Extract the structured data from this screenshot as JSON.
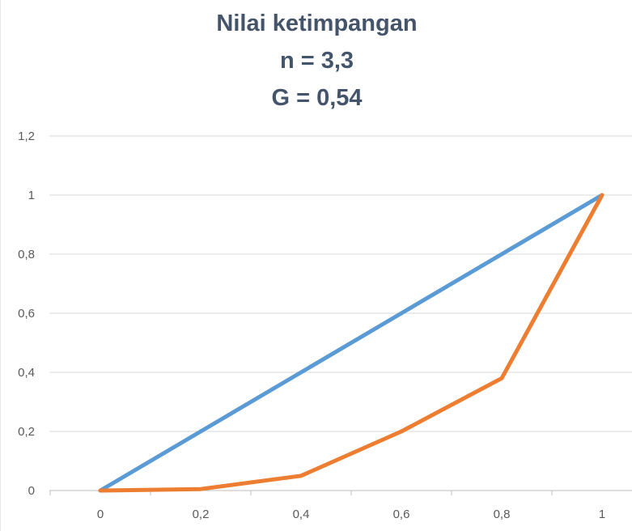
{
  "chart_data": {
    "type": "line",
    "title_lines": [
      "Nilai ketimpangan",
      "n = 3,3",
      "G = 0,54"
    ],
    "x_ticks": [
      "0",
      "0,2",
      "0,4",
      "0,6",
      "0,8",
      "1"
    ],
    "y_ticks": [
      "0",
      "0,2",
      "0,4",
      "0,6",
      "0,8",
      "1",
      "1,2"
    ],
    "xlim": [
      0,
      1
    ],
    "ylim": [
      0,
      1.2
    ],
    "grid": "horizontal",
    "legend": "none",
    "series": [
      {
        "color": "#5b9bd5",
        "x": [
          0,
          0.2,
          0.4,
          0.6,
          0.8,
          1
        ],
        "y": [
          0,
          0.2,
          0.4,
          0.6,
          0.8,
          1
        ]
      },
      {
        "color": "#ed7d31",
        "x": [
          0,
          0.2,
          0.4,
          0.6,
          0.8,
          1
        ],
        "y": [
          0,
          0.005,
          0.05,
          0.2,
          0.38,
          1
        ]
      }
    ]
  }
}
